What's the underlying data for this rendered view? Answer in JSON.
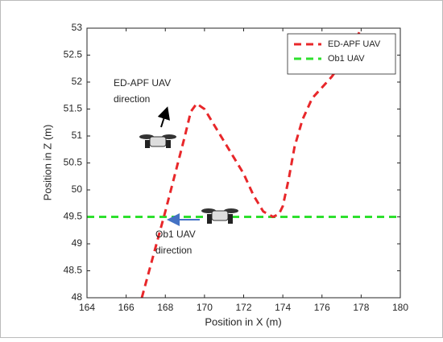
{
  "chart_data": {
    "type": "line",
    "xlabel": "Position in X (m)",
    "ylabel": "Position in Z (m)",
    "xlim": [
      164,
      180
    ],
    "xticks": [
      164,
      166,
      168,
      170,
      172,
      174,
      176,
      178,
      180
    ],
    "ylim": [
      48,
      53
    ],
    "yticks": [
      48,
      48.5,
      49,
      49.5,
      50,
      50.5,
      51,
      51.5,
      52,
      52.5,
      53
    ],
    "legend": "upper right",
    "linestyle": "dashed",
    "series": [
      {
        "name": "ED-APF UAV",
        "color": "#e8272a",
        "x": [
          166.8,
          167.4,
          168,
          168.5,
          169,
          169.3,
          169.6,
          170,
          170.5,
          171,
          171.5,
          172,
          172.5,
          173,
          173.5,
          173.8,
          174,
          174.3,
          174.6,
          175,
          175.5,
          176,
          176.5,
          177,
          177.5,
          178
        ],
        "values": [
          48,
          48.8,
          49.6,
          50.3,
          51,
          51.45,
          51.6,
          51.5,
          51.2,
          50.9,
          50.6,
          50.3,
          49.9,
          49.6,
          49.5,
          49.55,
          49.7,
          50.2,
          50.8,
          51.3,
          51.7,
          51.9,
          52.1,
          52.35,
          52.6,
          53
        ]
      },
      {
        "name": "Ob1 UAV",
        "color": "#2ee02e",
        "x": [
          164,
          180
        ],
        "values": [
          49.5,
          49.5
        ]
      }
    ],
    "annotations": [
      {
        "lines": [
          "ED-APF UAV",
          "direction"
        ]
      },
      {
        "lines": [
          "Ob1 UAV",
          "direction"
        ]
      }
    ]
  }
}
